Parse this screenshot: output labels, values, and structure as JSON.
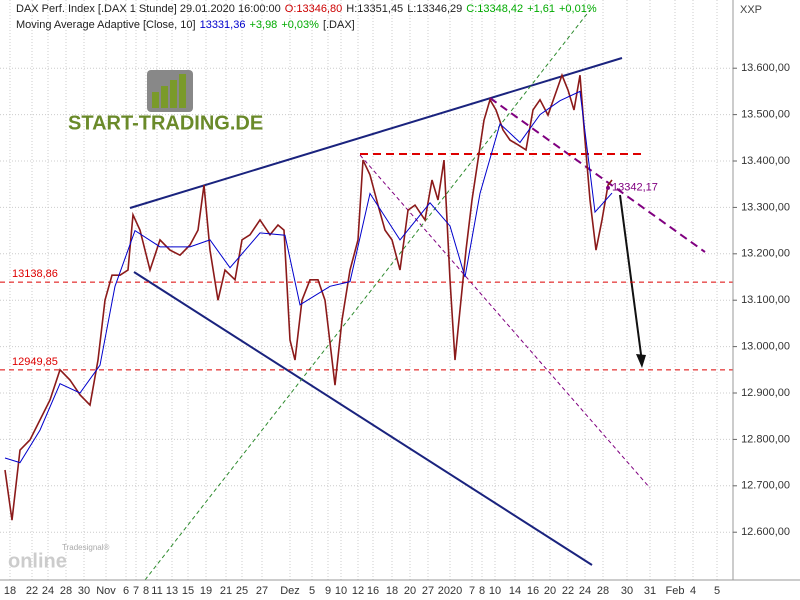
{
  "chart_data": {
    "type": "line",
    "header": [
      "DAX Perf. Index [.DAX  1 Stunde] 29.01.2020 16:00:00",
      "O:13346,80",
      "H:13351,45",
      "L:13346,29",
      "C:13348,42",
      "+1,61",
      "+0,01%"
    ],
    "header2": [
      "Moving Average Adaptive [Close, 10]",
      "13331,36",
      "+3,98",
      "+0,03%",
      "[.DAX]"
    ],
    "symbol": "XXP",
    "logo": "START-TRADING.DE",
    "brand": "Tradesignal®",
    "brand2": "online",
    "xlim": [
      0,
      733
    ],
    "ylim": [
      12497,
      13747
    ],
    "yticks": [
      {
        "value": 12600,
        "label": "12.600,00"
      },
      {
        "value": 12700,
        "label": "12.700,00"
      },
      {
        "value": 12800,
        "label": "12.800,00"
      },
      {
        "value": 12900,
        "label": "12.900,00"
      },
      {
        "value": 13000,
        "label": "13.000,00"
      },
      {
        "value": 13100,
        "label": "13.100,00"
      },
      {
        "value": 13200,
        "label": "13.200,00"
      },
      {
        "value": 13300,
        "label": "13.300,00"
      },
      {
        "value": 13400,
        "label": "13.400,00"
      },
      {
        "value": 13500,
        "label": "13.500,00"
      },
      {
        "value": 13600,
        "label": "13.600,00"
      }
    ],
    "x_labels": [
      "18",
      "22",
      "24",
      "28",
      "30",
      "Nov",
      "6",
      "7",
      "8",
      "11",
      "13",
      "15",
      "19",
      "21",
      "25",
      "27",
      "Dez",
      "5",
      "9",
      "10",
      "12",
      "16",
      "18",
      "20",
      "27",
      "2020",
      "7",
      "8",
      "10",
      "14",
      "16",
      "20",
      "22",
      "24",
      "28",
      "30",
      "31",
      "Feb",
      "4",
      "5"
    ],
    "grid": true,
    "series": [
      {
        "name": "DAX",
        "color": "#8b1a1a",
        "x": [
          5,
          12,
          20,
          30,
          40,
          50,
          60,
          70,
          80,
          90,
          98,
          105,
          112,
          120,
          128,
          133,
          140,
          150,
          160,
          170,
          180,
          190,
          198,
          204,
          210,
          218,
          225,
          235,
          242,
          250,
          260,
          270,
          278,
          284,
          290,
          295,
          302,
          310,
          318,
          325,
          335,
          342,
          350,
          358,
          363,
          370,
          378,
          385,
          392,
          400,
          408,
          415,
          425,
          432,
          438,
          444,
          450,
          455,
          460,
          466,
          472,
          478,
          484,
          490,
          496,
          503,
          510,
          518,
          526,
          533,
          540,
          548,
          555,
          562,
          568,
          574,
          580,
          585,
          590,
          596,
          602,
          608,
          612
        ],
        "values": [
          12734,
          12626,
          12777,
          12799,
          12842,
          12885,
          12950,
          12928,
          12896,
          12874,
          12971,
          13100,
          13154,
          13154,
          13165,
          13284,
          13251,
          13165,
          13230,
          13208,
          13197,
          13219,
          13251,
          13348,
          13208,
          13100,
          13165,
          13144,
          13230,
          13241,
          13273,
          13241,
          13262,
          13251,
          13014,
          12971,
          13100,
          13144,
          13144,
          13100,
          12917,
          13057,
          13165,
          13230,
          13402,
          13370,
          13305,
          13251,
          13230,
          13165,
          13294,
          13305,
          13273,
          13359,
          13316,
          13402,
          13144,
          12971,
          13079,
          13208,
          13316,
          13402,
          13488,
          13532,
          13510,
          13467,
          13445,
          13435,
          13424,
          13510,
          13532,
          13499,
          13542,
          13585,
          13553,
          13510,
          13585,
          13445,
          13316,
          13208,
          13273,
          13348,
          13359
        ]
      },
      {
        "name": "Moving Average Adaptive",
        "color": "#0000cc",
        "x": [
          5,
          20,
          40,
          60,
          80,
          100,
          115,
          135,
          160,
          190,
          210,
          230,
          260,
          285,
          300,
          330,
          350,
          370,
          400,
          430,
          450,
          465,
          480,
          500,
          520,
          540,
          560,
          580,
          595,
          612
        ],
        "values": [
          12760,
          12750,
          12820,
          12920,
          12900,
          12960,
          13130,
          13250,
          13215,
          13215,
          13230,
          13170,
          13245,
          13240,
          13090,
          13130,
          13140,
          13330,
          13230,
          13310,
          13260,
          13150,
          13330,
          13480,
          13440,
          13500,
          13530,
          13550,
          13290,
          13331
        ]
      }
    ],
    "levels": [
      {
        "value": 13138.86,
        "label": "13138,86"
      },
      {
        "value": 12949.85,
        "label": "12949,85"
      }
    ],
    "resistance": 13415,
    "last": {
      "value": 13342.17,
      "label": "13342,17"
    }
  }
}
